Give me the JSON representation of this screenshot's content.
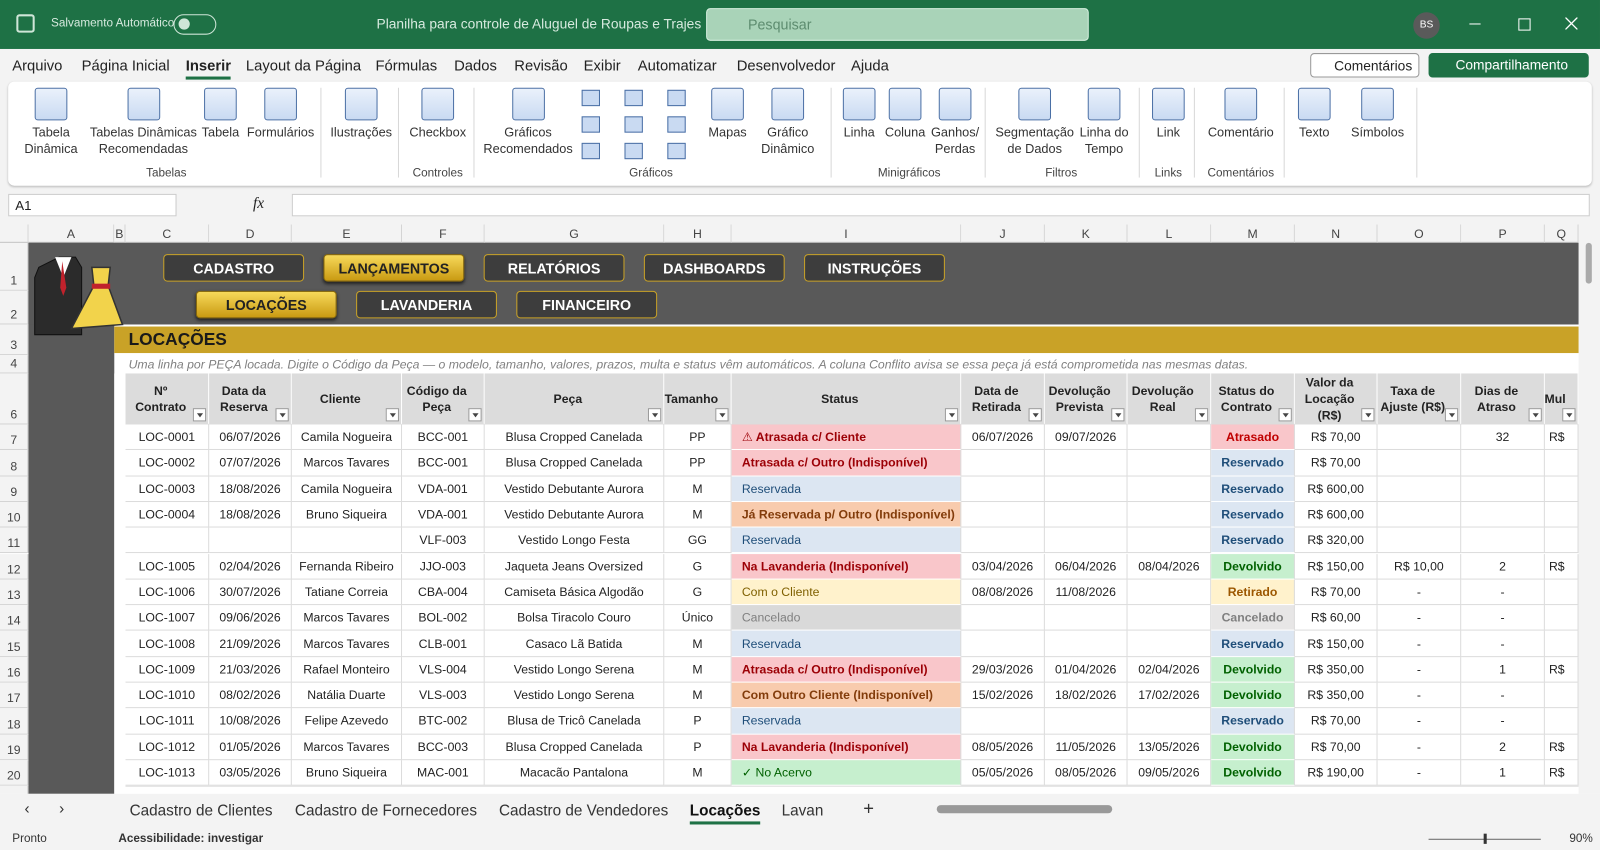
{
  "titlebar": {
    "autosave": "Salvamento Automático",
    "document_title": "Planilha para controle de Aluguel de Roupas e Trajes",
    "search": "Pesquisar",
    "user": "BS"
  },
  "menu": {
    "tabs": [
      "Arquivo",
      "Página Inicial",
      "Inserir",
      "Layout da Página",
      "Fórmulas",
      "Dados",
      "Revisão",
      "Exibir",
      "Automatizar",
      "Desenvolvedor",
      "Ajuda"
    ],
    "active": 2,
    "comments": "Comentários",
    "share": "Compartilhamento"
  },
  "ribbon": {
    "groups": [
      {
        "label": "Tabelas",
        "buttons": [
          "Tabela Dinâmica",
          "Tabelas Dinâmicas Recomendadas",
          "Tabela",
          "Formulários"
        ]
      },
      {
        "label": null,
        "buttons": [
          "Ilustrações"
        ]
      },
      {
        "label": "Controles",
        "buttons": [
          "Checkbox"
        ]
      },
      {
        "label": "Gráficos",
        "buttons": [
          "Gráficos Recomendados",
          "Mapas",
          "Gráfico Dinâmico"
        ]
      },
      {
        "label": "Minigráficos",
        "buttons": [
          "Linha",
          "Coluna",
          "Ganhos/ Perdas"
        ]
      },
      {
        "label": "Filtros",
        "buttons": [
          "Segmentação de Dados",
          "Linha do Tempo"
        ]
      },
      {
        "label": "Links",
        "buttons": [
          "Link"
        ]
      },
      {
        "label": "Comentários",
        "buttons": [
          "Comentário"
        ]
      },
      {
        "label": null,
        "buttons": [
          "Texto"
        ]
      },
      {
        "label": null,
        "buttons": [
          "Símbolos"
        ]
      }
    ]
  },
  "formula_bar": {
    "name_box": "A1",
    "fx": "fx"
  },
  "sheet": {
    "columns": [
      "A",
      "B",
      "C",
      "D",
      "E",
      "F",
      "G",
      "H",
      "I",
      "J",
      "K",
      "L",
      "M",
      "N",
      "O",
      "P",
      "Q"
    ],
    "rows": [
      1,
      2,
      3,
      4,
      6,
      7,
      8,
      9,
      10,
      11,
      12,
      13,
      14,
      15,
      16,
      17,
      18,
      19,
      20
    ]
  },
  "nav": {
    "row1": [
      "CADASTRO",
      "LANÇAMENTOS",
      "RELATÓRIOS",
      "DASHBOARDS",
      "INSTRUÇÕES"
    ],
    "active_row1": 1,
    "row2": [
      "LOCAÇÕES",
      "LAVANDERIA",
      "FINANCEIRO"
    ],
    "active_row2": 0
  },
  "section": {
    "title": "LOCAÇÕES",
    "instruction": "Uma linha por PEÇA locada. Digite o Código da Peça — o modelo, tamanho, valores, prazos, multa e status vêm automáticos. A coluna Conflito avisa se essa peça já está comprometida nas mesmas datas."
  },
  "table": {
    "headers": [
      "Nº Contrato",
      "Data da Reserva",
      "Cliente",
      "Código da Peça",
      "Peça",
      "Tamanho",
      "Status",
      "Data de Retirada",
      "Devolução Prevista",
      "Devolução Real",
      "Status do Contrato",
      "Valor da Locação (R$)",
      "Taxa de Ajuste (R$)",
      "Dias de Atraso",
      "Mul"
    ],
    "rows": [
      {
        "cells": [
          "LOC-0001",
          "06/07/2026",
          "Camila Nogueira",
          "BCC-001",
          "Blusa Cropped Canelada",
          "PP",
          "⚠ Atrasada c/ Cliente",
          "06/07/2026",
          "09/07/2026",
          "",
          "Atrasado",
          "R$ 70,00",
          "",
          "32",
          "R$"
        ],
        "status_bg": "#f9c6ca",
        "status_fg": "#9c0006",
        "status_bold": true,
        "contract_bg": "#f9c6ca",
        "contract_fg": "#c00000"
      },
      {
        "cells": [
          "LOC-0002",
          "07/07/2026",
          "Marcos Tavares",
          "BCC-001",
          "Blusa Cropped Canelada",
          "PP",
          "Atrasada c/ Outro (Indisponível)",
          "",
          "",
          "",
          "Reservado",
          "R$ 70,00",
          "",
          "",
          ""
        ],
        "status_bg": "#f9c6ca",
        "status_fg": "#9c0006",
        "status_bold": true,
        "contract_bg": "#dce6f2",
        "contract_fg": "#1f4e79"
      },
      {
        "cells": [
          "LOC-0003",
          "18/08/2026",
          "Camila Nogueira",
          "VDA-001",
          "Vestido Debutante Aurora",
          "M",
          "Reservada",
          "",
          "",
          "",
          "Reservado",
          "R$ 600,00",
          "",
          "",
          ""
        ],
        "status_bg": "#dce6f2",
        "status_fg": "#1f4e79",
        "status_bold": false,
        "contract_bg": "#dce6f2",
        "contract_fg": "#1f4e79"
      },
      {
        "cells": [
          "LOC-0004",
          "18/08/2026",
          "Bruno Siqueira",
          "VDA-001",
          "Vestido Debutante Aurora",
          "M",
          "Já Reservada p/ Outro (Indisponível)",
          "",
          "",
          "",
          "Reservado",
          "R$ 600,00",
          "",
          "",
          ""
        ],
        "status_bg": "#f8cbad",
        "status_fg": "#833c0b",
        "status_bold": true,
        "contract_bg": "#dce6f2",
        "contract_fg": "#1f4e79"
      },
      {
        "cells": [
          "",
          "",
          "",
          "VLF-003",
          "Vestido Longo Festa",
          "GG",
          "Reservada",
          "",
          "",
          "",
          "Reservado",
          "R$ 320,00",
          "",
          "",
          ""
        ],
        "status_bg": "#dce6f2",
        "status_fg": "#1f4e79",
        "status_bold": false,
        "contract_bg": "#dce6f2",
        "contract_fg": "#1f4e79"
      },
      {
        "cells": [
          "LOC-1005",
          "02/04/2026",
          "Fernanda Ribeiro",
          "JJO-003",
          "Jaqueta Jeans Oversized",
          "G",
          "Na Lavanderia (Indisponível)",
          "03/04/2026",
          "06/04/2026",
          "08/04/2026",
          "Devolvido",
          "R$ 150,00",
          "R$ 10,00",
          "2",
          "R$"
        ],
        "status_bg": "#f9c6ca",
        "status_fg": "#9c0006",
        "status_bold": true,
        "contract_bg": "#c6efce",
        "contract_fg": "#006100"
      },
      {
        "cells": [
          "LOC-1006",
          "30/07/2026",
          "Tatiane Correia",
          "CBA-004",
          "Camiseta Básica Algodão",
          "G",
          "Com o Cliente",
          "08/08/2026",
          "11/08/2026",
          "",
          "Retirado",
          "R$ 70,00",
          "-",
          "-",
          ""
        ],
        "status_bg": "#fff2cc",
        "status_fg": "#7f6000",
        "status_bold": false,
        "contract_bg": "#fff2cc",
        "contract_fg": "#9c5700"
      },
      {
        "cells": [
          "LOC-1007",
          "09/06/2026",
          "Marcos Tavares",
          "BOL-002",
          "Bolsa Tiracolo Couro",
          "Único",
          "Cancelado",
          "",
          "",
          "",
          "Cancelado",
          "R$ 60,00",
          "-",
          "-",
          ""
        ],
        "status_bg": "#d9d9d9",
        "status_fg": "#808080",
        "status_bold": false,
        "contract_bg": "#e7e6e6",
        "contract_fg": "#808080"
      },
      {
        "cells": [
          "LOC-1008",
          "21/09/2026",
          "Marcos Tavares",
          "CLB-001",
          "Casaco Lã Batida",
          "M",
          "Reservada",
          "",
          "",
          "",
          "Reservado",
          "R$ 150,00",
          "-",
          "-",
          ""
        ],
        "status_bg": "#dce6f2",
        "status_fg": "#1f4e79",
        "status_bold": false,
        "contract_bg": "#dce6f2",
        "contract_fg": "#1f4e79"
      },
      {
        "cells": [
          "LOC-1009",
          "21/03/2026",
          "Rafael Monteiro",
          "VLS-004",
          "Vestido Longo Serena",
          "M",
          "Atrasada c/ Outro (Indisponível)",
          "29/03/2026",
          "01/04/2026",
          "02/04/2026",
          "Devolvido",
          "R$ 350,00",
          "-",
          "1",
          "R$"
        ],
        "status_bg": "#f9c6ca",
        "status_fg": "#9c0006",
        "status_bold": true,
        "contract_bg": "#c6efce",
        "contract_fg": "#006100"
      },
      {
        "cells": [
          "LOC-1010",
          "08/02/2026",
          "Natália Duarte",
          "VLS-003",
          "Vestido Longo Serena",
          "M",
          "Com Outro Cliente (Indisponível)",
          "15/02/2026",
          "18/02/2026",
          "17/02/2026",
          "Devolvido",
          "R$ 350,00",
          "-",
          "-",
          ""
        ],
        "status_bg": "#f8cbad",
        "status_fg": "#833c0b",
        "status_bold": true,
        "contract_bg": "#c6efce",
        "contract_fg": "#006100"
      },
      {
        "cells": [
          "LOC-1011",
          "10/08/2026",
          "Felipe Azevedo",
          "BTC-002",
          "Blusa de Tricô Canelada",
          "P",
          "Reservada",
          "",
          "",
          "",
          "Reservado",
          "R$ 70,00",
          "-",
          "-",
          ""
        ],
        "status_bg": "#dce6f2",
        "status_fg": "#1f4e79",
        "status_bold": false,
        "contract_bg": "#dce6f2",
        "contract_fg": "#1f4e79"
      },
      {
        "cells": [
          "LOC-1012",
          "01/05/2026",
          "Marcos Tavares",
          "BCC-003",
          "Blusa Cropped Canelada",
          "P",
          "Na Lavanderia (Indisponível)",
          "08/05/2026",
          "11/05/2026",
          "13/05/2026",
          "Devolvido",
          "R$ 70,00",
          "-",
          "2",
          "R$"
        ],
        "status_bg": "#f9c6ca",
        "status_fg": "#9c0006",
        "status_bold": true,
        "contract_bg": "#c6efce",
        "contract_fg": "#006100"
      },
      {
        "cells": [
          "LOC-1013",
          "03/05/2026",
          "Bruno Siqueira",
          "MAC-001",
          "Macacão Pantalona",
          "M",
          "✓ No Acervo",
          "05/05/2026",
          "08/05/2026",
          "09/05/2026",
          "Devolvido",
          "R$ 190,00",
          "-",
          "1",
          "R$"
        ],
        "status_bg": "#c6efce",
        "status_fg": "#006100",
        "status_bold": false,
        "contract_bg": "#c6efce",
        "contract_fg": "#006100"
      }
    ]
  },
  "sheet_tabs": {
    "tabs": [
      "Cadastro de Clientes",
      "Cadastro de Fornecedores",
      "Cadastro de Vendedores",
      "Locações",
      "Lavan"
    ],
    "active": 3
  },
  "status_bar": {
    "ready": "Pronto",
    "accessibility": "Acessibilidade: investigar",
    "zoom": "90%"
  }
}
